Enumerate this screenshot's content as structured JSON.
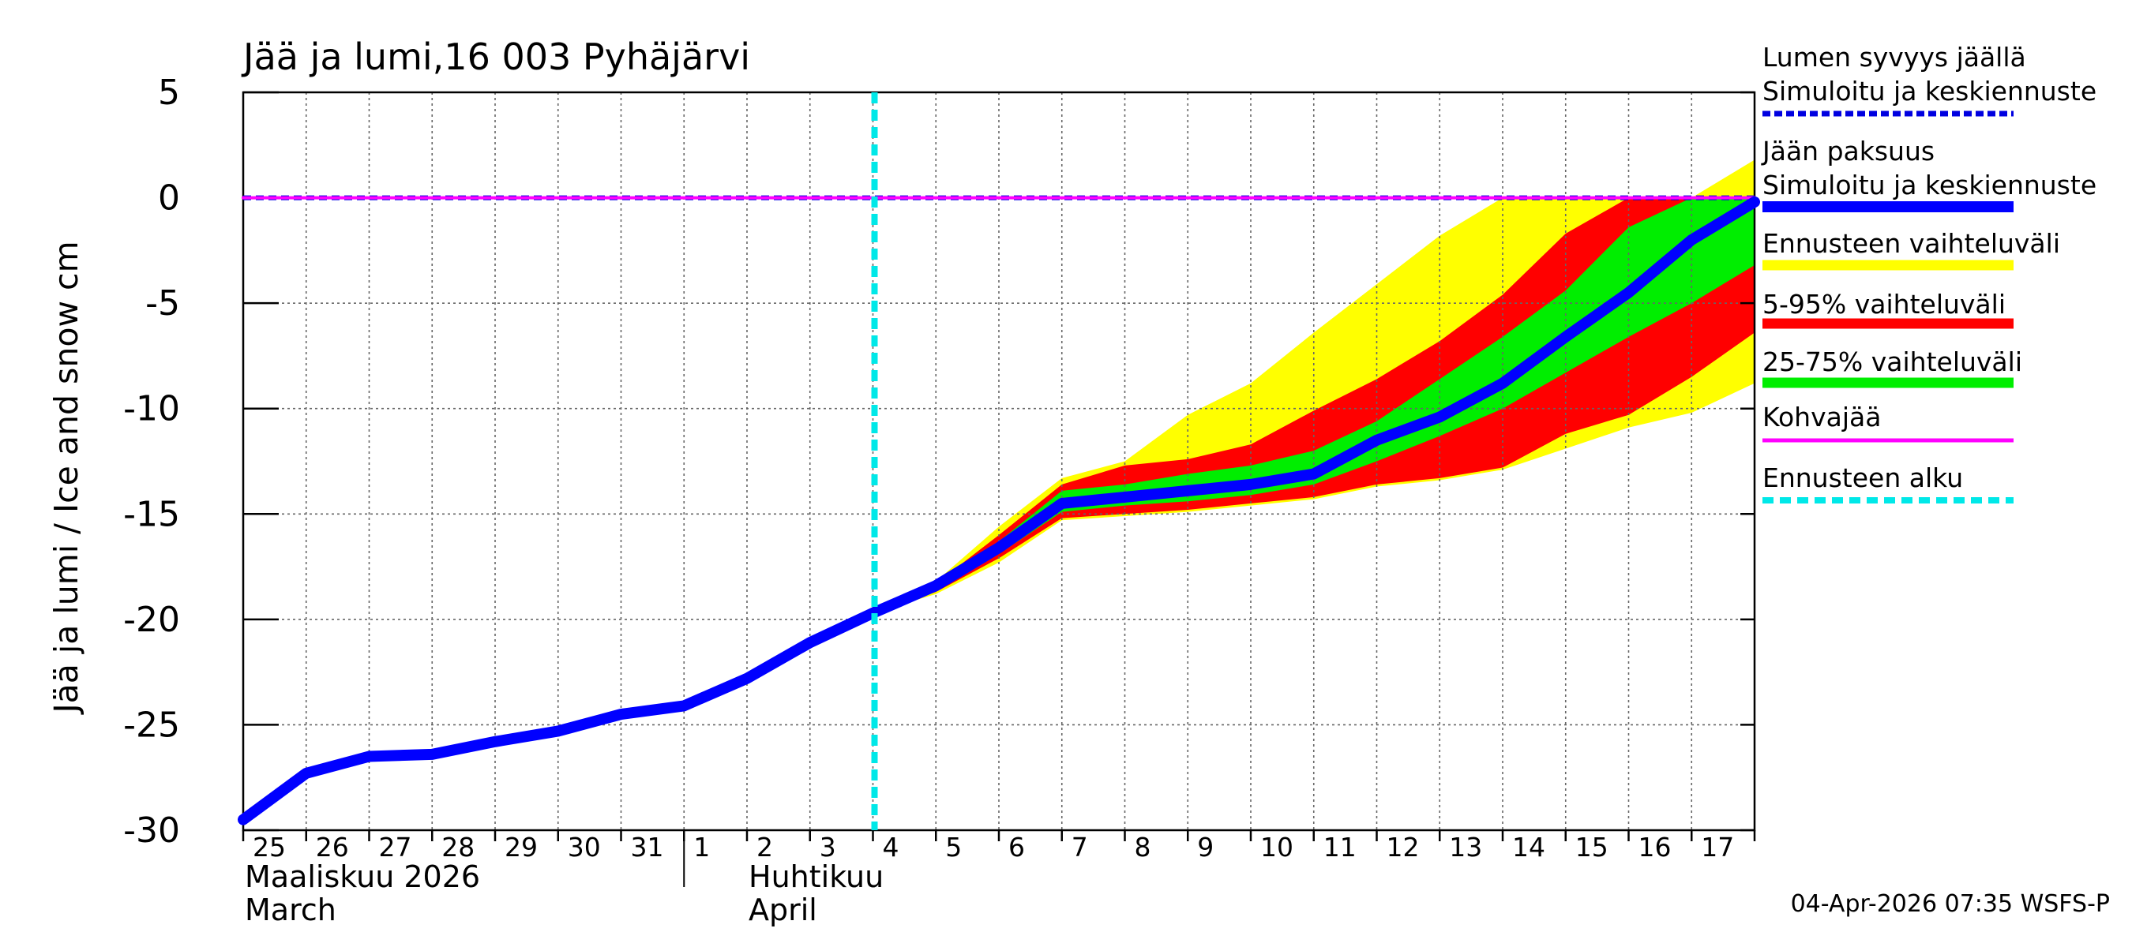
{
  "chart_data": {
    "type": "area",
    "title": "Jää ja lumi,16 003 Pyhäjärvi",
    "ylabel": "Jää ja lumi / Ice and snow    cm",
    "ylim": [
      -30,
      5
    ],
    "yticks": [
      5,
      0,
      -5,
      -10,
      -15,
      -20,
      -25,
      -30
    ],
    "y_tick_labels": [
      "5",
      "0",
      "-5",
      "-10",
      "-15",
      "-20",
      "-25",
      "-30"
    ],
    "x_day_labels": [
      "25",
      "26",
      "27",
      "28",
      "29",
      "30",
      "31",
      "1",
      "2",
      "3",
      "4",
      "5",
      "6",
      "7",
      "8",
      "9",
      "10",
      "11",
      "12",
      "13",
      "14",
      "15",
      "16",
      "17"
    ],
    "x_day_offsets": [
      0,
      1,
      2,
      3,
      4,
      5,
      6,
      7,
      8,
      9,
      10,
      11,
      12,
      13,
      14,
      15,
      16,
      17,
      18,
      19,
      20,
      21,
      22,
      23
    ],
    "xlim_days": [
      0,
      24
    ],
    "months": [
      {
        "name_fi": "Maaliskuu 2026",
        "name_en": "March",
        "start_day": 0
      },
      {
        "name_fi": "Huhtikuu",
        "name_en": "April",
        "start_day": 7
      }
    ],
    "forecast_start_day": 10,
    "series": [
      {
        "name": "Lumen syvyys jäällä – Simuloitu ja keskiennuste",
        "style": "dashed",
        "color": "#0000e0",
        "x": [
          0,
          24
        ],
        "values": [
          0,
          0
        ]
      },
      {
        "name": "Kohvajää",
        "style": "solid",
        "color": "#ff00ff",
        "x": [
          0,
          24
        ],
        "values": [
          0,
          0
        ]
      },
      {
        "name": "Jään paksuus – Simuloitu ja keskiennuste",
        "style": "solid",
        "color": "#0000ff",
        "x": [
          0,
          1,
          2,
          3,
          4,
          5,
          6,
          7,
          8,
          9,
          10,
          11,
          12,
          13,
          14,
          15,
          16,
          17,
          18,
          19,
          20,
          21,
          22,
          23,
          24
        ],
        "values": [
          -29.5,
          -27.3,
          -26.5,
          -26.4,
          -25.8,
          -25.3,
          -24.5,
          -24.1,
          -22.8,
          -21.1,
          -19.7,
          -18.4,
          -16.6,
          -14.5,
          -14.2,
          -13.9,
          -13.6,
          -13.1,
          -11.5,
          -10.4,
          -8.8,
          -6.6,
          -4.5,
          -2.0,
          -0.2
        ]
      }
    ],
    "bands": [
      {
        "name": "Ennusteen vaihteluväli",
        "color": "#ffff00",
        "x": [
          10,
          11,
          12,
          13,
          14,
          15,
          16,
          17,
          18,
          19,
          20,
          21,
          22,
          23,
          24
        ],
        "upper": [
          -19.6,
          -18.2,
          -15.6,
          -13.3,
          -12.5,
          -10.3,
          -8.8,
          -6.4,
          -4.1,
          -1.8,
          0.0,
          0.0,
          0.0,
          0.0,
          1.8
        ],
        "lower": [
          -19.7,
          -18.8,
          -17.3,
          -15.3,
          -15.1,
          -14.9,
          -14.6,
          -14.3,
          -13.7,
          -13.4,
          -12.9,
          -11.9,
          -10.9,
          -10.2,
          -8.8
        ]
      },
      {
        "name": "5-95% vaihteluväli",
        "color": "#ff0000",
        "x": [
          10,
          11,
          12,
          13,
          14,
          15,
          16,
          17,
          18,
          19,
          20,
          21,
          22,
          23,
          24
        ],
        "upper": [
          -19.6,
          -18.3,
          -16.0,
          -13.6,
          -12.7,
          -12.4,
          -11.7,
          -10.1,
          -8.6,
          -6.8,
          -4.6,
          -1.7,
          0.0,
          0.0,
          0.0
        ],
        "lower": [
          -19.7,
          -18.7,
          -17.1,
          -15.2,
          -15.0,
          -14.8,
          -14.5,
          -14.2,
          -13.6,
          -13.3,
          -12.8,
          -11.2,
          -10.3,
          -8.5,
          -6.4
        ]
      },
      {
        "name": "25-75% vaihteluväli",
        "color": "#00ee00",
        "x": [
          10,
          11,
          12,
          13,
          14,
          15,
          16,
          17,
          18,
          19,
          20,
          21,
          22,
          23,
          24
        ],
        "upper": [
          -19.6,
          -18.3,
          -16.3,
          -13.9,
          -13.6,
          -13.1,
          -12.7,
          -12.0,
          -10.6,
          -8.6,
          -6.6,
          -4.4,
          -1.4,
          0.0,
          0.0
        ],
        "lower": [
          -19.7,
          -18.5,
          -16.9,
          -14.9,
          -14.6,
          -14.4,
          -14.1,
          -13.6,
          -12.5,
          -11.3,
          -10.0,
          -8.3,
          -6.6,
          -5.0,
          -3.2
        ]
      }
    ],
    "legend": [
      {
        "line1": "Lumen syvyys jäällä",
        "line2": "Simuloitu ja keskiennuste",
        "color": "#0000e0",
        "style": "dashed"
      },
      {
        "line1": "Jään paksuus",
        "line2": "Simuloitu ja keskiennuste",
        "color": "#0000ff",
        "style": "thick"
      },
      {
        "line1": "Ennusteen vaihteluväli",
        "line2": "",
        "color": "#ffff00",
        "style": "band"
      },
      {
        "line1": "5-95% vaihteluväli",
        "line2": "",
        "color": "#ff0000",
        "style": "band"
      },
      {
        "line1": "25-75% vaihteluväli",
        "line2": "",
        "color": "#00ee00",
        "style": "band"
      },
      {
        "line1": "Kohvajää",
        "line2": "",
        "color": "#ff00ff",
        "style": "line"
      },
      {
        "line1": "Ennusteen alku",
        "line2": "",
        "color": "#00e8e8",
        "style": "dotted"
      }
    ],
    "legend_position": "right",
    "grid": true
  },
  "footer": {
    "timestamp": "04-Apr-2026 07:35 WSFS-P"
  }
}
